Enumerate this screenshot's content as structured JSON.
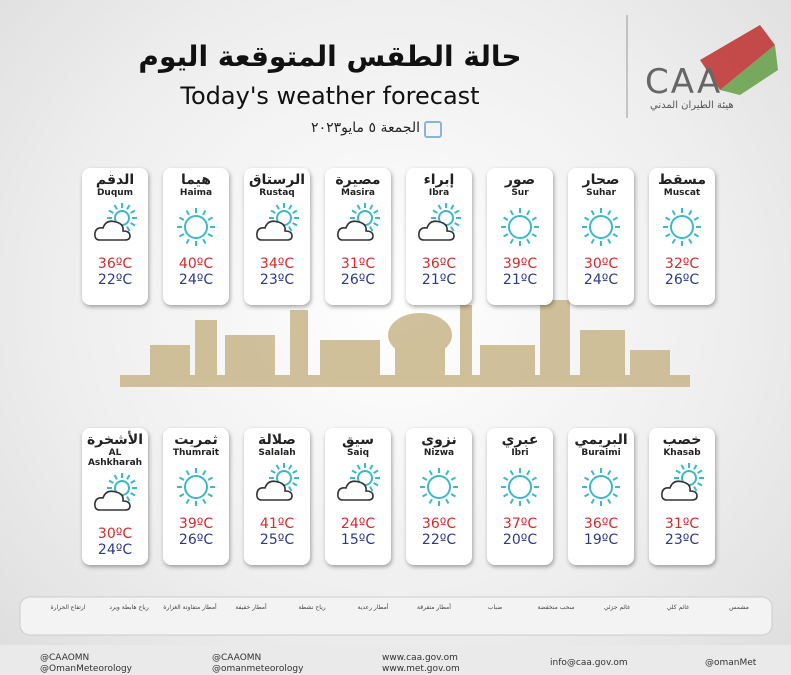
{
  "header": {
    "title_ar": "حالة الطقس المتوقعة اليوم",
    "title_en": "Today's weather forecast",
    "date": "الجمعة ٥ مايو٢٠٢٣",
    "logo": "CAA",
    "logo_ar": "هيئة الطيران المدني"
  },
  "rows": [
    [
      {
        "name_ar": "الدقم",
        "name_en": "Duqum",
        "condition": "partly-cloudy",
        "high": "36ºC",
        "low": "22ºC"
      },
      {
        "name_ar": "هيما",
        "name_en": "Haima",
        "condition": "sunny",
        "high": "40ºC",
        "low": "24ºC"
      },
      {
        "name_ar": "الرستاق",
        "name_en": "Rustaq",
        "condition": "partly-cloudy",
        "high": "34ºC",
        "low": "23ºC"
      },
      {
        "name_ar": "مصيرة",
        "name_en": "Masira",
        "condition": "partly-cloudy",
        "high": "31ºC",
        "low": "26ºC"
      },
      {
        "name_ar": "إبراء",
        "name_en": "Ibra",
        "condition": "partly-cloudy",
        "high": "36ºC",
        "low": "21ºC"
      },
      {
        "name_ar": "صور",
        "name_en": "Sur",
        "condition": "sunny",
        "high": "39ºC",
        "low": "21ºC"
      },
      {
        "name_ar": "صحار",
        "name_en": "Suhar",
        "condition": "sunny",
        "high": "30ºC",
        "low": "24ºC"
      },
      {
        "name_ar": "مسقط",
        "name_en": "Muscat",
        "condition": "sunny",
        "high": "32ºC",
        "low": "26ºC"
      }
    ],
    [
      {
        "name_ar": "الأشخرة",
        "name_en": "AL Ashkharah",
        "condition": "partly-cloudy",
        "high": "30ºC",
        "low": "24ºC"
      },
      {
        "name_ar": "ثمريت",
        "name_en": "Thumrait",
        "condition": "sunny",
        "high": "39ºC",
        "low": "26ºC"
      },
      {
        "name_ar": "صلالة",
        "name_en": "Salalah",
        "condition": "partly-cloudy",
        "high": "41ºC",
        "low": "25ºC"
      },
      {
        "name_ar": "سيق",
        "name_en": "Saiq",
        "condition": "partly-cloudy",
        "high": "24ºC",
        "low": "15ºC"
      },
      {
        "name_ar": "نزوى",
        "name_en": "Nizwa",
        "condition": "sunny",
        "high": "36ºC",
        "low": "22ºC"
      },
      {
        "name_ar": "عبري",
        "name_en": "Ibri",
        "condition": "sunny",
        "high": "37ºC",
        "low": "20ºC"
      },
      {
        "name_ar": "البريمي",
        "name_en": "Buraimi",
        "condition": "sunny",
        "high": "36ºC",
        "low": "19ºC"
      },
      {
        "name_ar": "خصب",
        "name_en": "Khasab",
        "condition": "partly-cloudy",
        "high": "31ºC",
        "low": "23ºC"
      }
    ]
  ],
  "legend": [
    "ارتفاع الحرارة",
    "رياح هابطة وبرد",
    "أمطار متفاوتة الغزارة",
    "أمطار خفيفة",
    "رياح نشطة",
    "أمطار رعدية",
    "أمطار متفرقة",
    "ضباب",
    "سحب منخفضة",
    "غائم جزئي",
    "غائم كلي",
    "مشمس"
  ],
  "footer": {
    "twitter": [
      "@CAAOMN",
      "@OmanMeteorology"
    ],
    "instagram": [
      "@CAAOMN",
      "@omanmeteorology"
    ],
    "web": [
      "www.caa.gov.om",
      "www.met.gov.om"
    ],
    "email": "info@caa.gov.om",
    "facebook": "@omanMet"
  }
}
